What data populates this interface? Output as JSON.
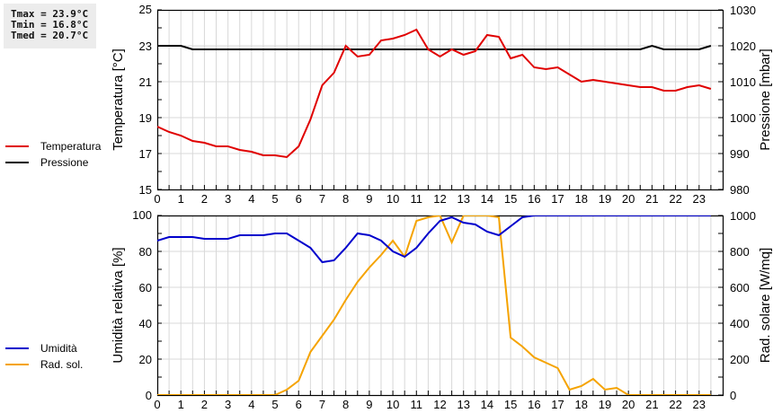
{
  "stats": {
    "tmax": "Tmax = 23.9°C",
    "tmin": "Tmin = 16.8°C",
    "tmed": "Tmed = 20.7°C"
  },
  "legend_top": [
    {
      "label": "Temperatura",
      "color": "#e00000"
    },
    {
      "label": "Pressione",
      "color": "#000000"
    }
  ],
  "legend_bottom": [
    {
      "label": "Umidità",
      "color": "#0000cc"
    },
    {
      "label": "Rad. sol.",
      "color": "#f5a300"
    }
  ],
  "chart_data": [
    {
      "type": "line",
      "title": "",
      "xlabel": "",
      "ylabel": "Temperatura [°C]",
      "y2label": "Pressione [mbar]",
      "ylim": [
        15,
        25
      ],
      "y2lim": [
        980,
        1030
      ],
      "yticks": [
        15,
        17,
        19,
        21,
        23,
        25
      ],
      "y2ticks": [
        980,
        990,
        1000,
        1010,
        1020,
        1030
      ],
      "xticks": [
        0,
        1,
        2,
        3,
        4,
        5,
        6,
        7,
        8,
        9,
        10,
        11,
        12,
        13,
        14,
        15,
        16,
        17,
        18,
        19,
        20,
        21,
        22,
        23
      ],
      "grid": true,
      "legend_position": "left",
      "x": [
        0,
        0.5,
        1,
        1.5,
        2,
        2.5,
        3,
        3.5,
        4,
        4.5,
        5,
        5.5,
        6,
        6.5,
        7,
        7.5,
        8,
        8.5,
        9,
        9.5,
        10,
        10.5,
        11,
        11.5,
        12,
        12.5,
        13,
        13.5,
        14,
        14.5,
        15,
        15.5,
        16,
        16.5,
        17,
        17.5,
        18,
        18.5,
        19,
        19.5,
        20,
        20.5,
        21,
        21.5,
        22,
        22.5,
        23,
        23.5
      ],
      "series": [
        {
          "name": "Temperatura",
          "axis": "left",
          "color": "#e00000",
          "values": [
            18.5,
            18.2,
            18.0,
            17.7,
            17.6,
            17.4,
            17.4,
            17.2,
            17.1,
            16.9,
            16.9,
            16.8,
            17.4,
            18.9,
            20.8,
            21.5,
            23.0,
            22.4,
            22.5,
            23.3,
            23.4,
            23.6,
            23.9,
            22.8,
            22.4,
            22.8,
            22.5,
            22.7,
            23.6,
            23.5,
            22.3,
            22.5,
            21.8,
            21.7,
            21.8,
            21.4,
            21.0,
            21.1,
            21.0,
            20.9,
            20.8,
            20.7,
            20.7,
            20.5,
            20.5,
            20.7,
            20.8,
            20.6
          ]
        },
        {
          "name": "Pressione",
          "axis": "right",
          "color": "#000000",
          "values": [
            1020,
            1020,
            1020,
            1019,
            1019,
            1019,
            1019,
            1019,
            1019,
            1019,
            1019,
            1019,
            1019,
            1019,
            1019,
            1019,
            1019,
            1019,
            1019,
            1019,
            1019,
            1019,
            1019,
            1019,
            1019,
            1019,
            1019,
            1019,
            1019,
            1019,
            1019,
            1019,
            1019,
            1019,
            1019,
            1019,
            1019,
            1019,
            1019,
            1019,
            1019,
            1019,
            1020,
            1019,
            1019,
            1019,
            1019,
            1020
          ]
        }
      ]
    },
    {
      "type": "line",
      "title": "",
      "xlabel": "",
      "ylabel": "Umidità relativa [%]",
      "y2label": "Rad. solare [W/mq]",
      "ylim": [
        0,
        100
      ],
      "y2lim": [
        0,
        1000
      ],
      "yticks": [
        0,
        20,
        40,
        60,
        80,
        100
      ],
      "y2ticks": [
        0,
        200,
        400,
        600,
        800,
        1000
      ],
      "xticks": [
        0,
        1,
        2,
        3,
        4,
        5,
        6,
        7,
        8,
        9,
        10,
        11,
        12,
        13,
        14,
        15,
        16,
        17,
        18,
        19,
        20,
        21,
        22,
        23
      ],
      "grid": true,
      "legend_position": "left",
      "x": [
        0,
        0.5,
        1,
        1.5,
        2,
        2.5,
        3,
        3.5,
        4,
        4.5,
        5,
        5.5,
        6,
        6.5,
        7,
        7.5,
        8,
        8.5,
        9,
        9.5,
        10,
        10.5,
        11,
        11.5,
        12,
        12.5,
        13,
        13.5,
        14,
        14.5,
        15,
        15.5,
        16,
        16.5,
        17,
        17.5,
        18,
        18.5,
        19,
        19.5,
        20,
        20.5,
        21,
        21.5,
        22,
        22.5,
        23,
        23.5
      ],
      "series": [
        {
          "name": "Umidità",
          "axis": "left",
          "color": "#0000cc",
          "values": [
            86,
            88,
            88,
            88,
            87,
            87,
            87,
            89,
            89,
            89,
            90,
            90,
            86,
            82,
            74,
            75,
            82,
            90,
            89,
            86,
            80,
            77,
            82,
            90,
            97,
            99,
            96,
            95,
            91,
            89,
            94,
            99,
            100,
            100,
            100,
            100,
            100,
            100,
            100,
            100,
            100,
            100,
            100,
            100,
            100,
            100,
            100,
            100
          ]
        },
        {
          "name": "Rad. sol.",
          "axis": "right",
          "color": "#f5a300",
          "values": [
            0,
            0,
            0,
            0,
            0,
            0,
            0,
            0,
            0,
            0,
            0,
            30,
            80,
            240,
            330,
            420,
            530,
            630,
            710,
            780,
            860,
            770,
            970,
            990,
            1000,
            850,
            1000,
            1000,
            1000,
            990,
            320,
            270,
            210,
            180,
            150,
            30,
            50,
            90,
            30,
            40,
            0,
            0,
            0,
            0,
            0,
            0,
            0,
            0
          ]
        }
      ]
    }
  ]
}
